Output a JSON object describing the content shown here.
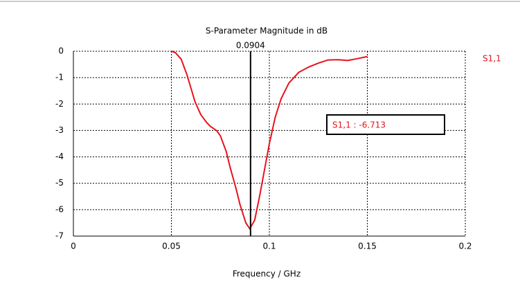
{
  "chart_data": {
    "type": "line",
    "title": "S-Parameter Magnitude in dB",
    "x_label": "Frequency / GHz",
    "x": [
      0.05,
      0.052,
      0.055,
      0.058,
      0.06,
      0.062,
      0.065,
      0.068,
      0.07,
      0.073,
      0.075,
      0.078,
      0.08,
      0.083,
      0.085,
      0.088,
      0.09,
      0.0925,
      0.095,
      0.098,
      0.1,
      0.103,
      0.106,
      0.11,
      0.115,
      0.12,
      0.125,
      0.13,
      0.135,
      0.14,
      0.145,
      0.15
    ],
    "series": [
      {
        "name": "S1,1",
        "color": "#e8111b",
        "values": [
          0,
          -0.05,
          -0.3,
          -0.9,
          -1.4,
          -1.9,
          -2.4,
          -2.7,
          -2.85,
          -3.0,
          -3.2,
          -3.8,
          -4.4,
          -5.2,
          -5.8,
          -6.5,
          -6.72,
          -6.4,
          -5.5,
          -4.3,
          -3.5,
          -2.5,
          -1.8,
          -1.2,
          -0.8,
          -0.6,
          -0.45,
          -0.33,
          -0.32,
          -0.35,
          -0.28,
          -0.2
        ]
      }
    ],
    "xlim": [
      0,
      0.2
    ],
    "xticks": [
      0,
      0.05,
      0.1,
      0.15,
      0.2
    ],
    "ylim": [
      -7,
      0
    ],
    "yticks": [
      0,
      -1,
      -2,
      -3,
      -4,
      -5,
      -6,
      -7
    ],
    "grid": true,
    "marker_x": 0.0904,
    "marker_annotation": "S1,1 : -6.713"
  }
}
